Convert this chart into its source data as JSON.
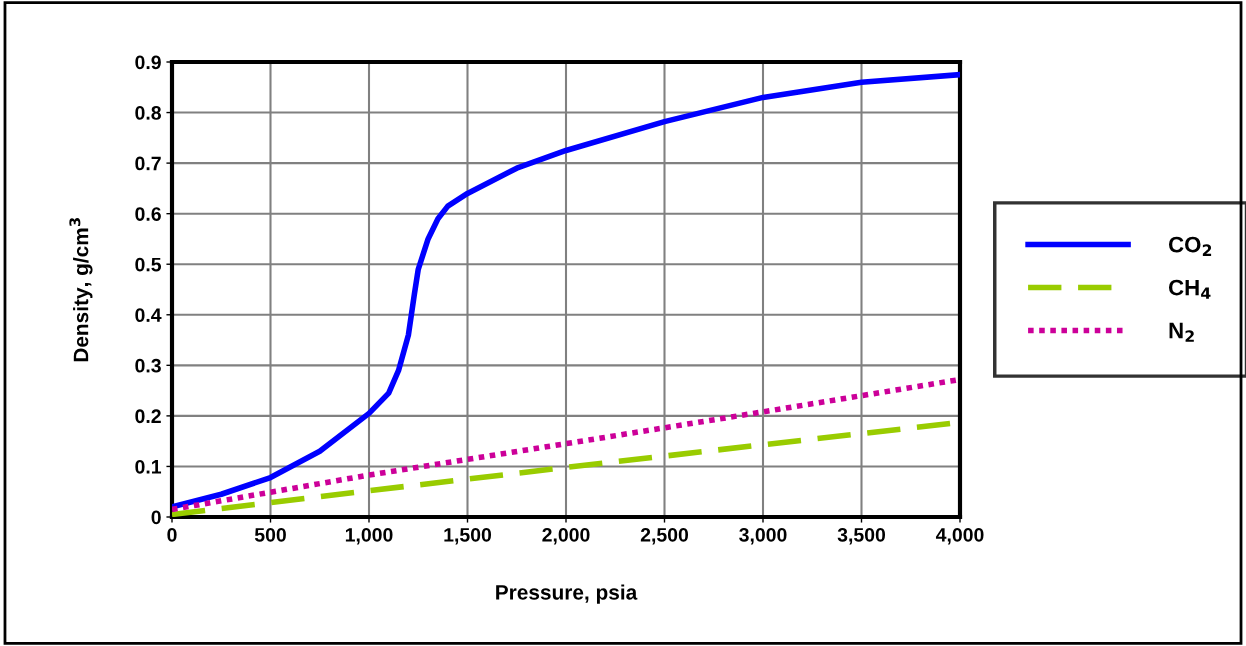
{
  "chart_data": {
    "type": "line",
    "xlabel": "Pressure, psia",
    "ylabel": "Density, g/cm$^{3}$",
    "xlim": [
      0,
      4000
    ],
    "ylim": [
      0,
      0.9
    ],
    "xticks": [
      0,
      {
        "value": 500,
        "label": "500"
      },
      {
        "value": 1000,
        "label": "1,000"
      },
      {
        "value": 1500,
        "label": "1,500"
      },
      {
        "value": 2000,
        "label": "2,000"
      },
      {
        "value": 2500,
        "label": "2,500"
      },
      {
        "value": 3000,
        "label": "3,000"
      },
      {
        "value": 3500,
        "label": "3,500"
      },
      {
        "value": 4000,
        "label": "4,000"
      }
    ],
    "yticks": [
      0,
      0.1,
      0.2,
      0.3,
      0.4,
      0.5,
      0.6,
      0.7,
      0.8,
      0.9
    ],
    "grid": true,
    "legend": "right",
    "marker": "none",
    "series": [
      {
        "name": "CO$_{2}$",
        "color": "#0000ff",
        "line_style": "solid",
        "x": [
          0,
          250,
          500,
          750,
          1000,
          1100,
          1150,
          1200,
          1230,
          1250,
          1300,
          1350,
          1400,
          1500,
          1750,
          2000,
          2500,
          3000,
          3500,
          4000
        ],
        "values": [
          0.02,
          0.045,
          0.078,
          0.13,
          0.205,
          0.245,
          0.29,
          0.36,
          0.44,
          0.49,
          0.55,
          0.59,
          0.615,
          0.64,
          0.69,
          0.725,
          0.782,
          0.83,
          0.86,
          0.875
        ]
      },
      {
        "name": "CH$_{4}$",
        "color": "#99cc00",
        "line_style": "dashed",
        "x": [
          0,
          1000,
          2000,
          3000,
          4000
        ],
        "values": [
          0.005,
          0.052,
          0.098,
          0.143,
          0.187
        ]
      },
      {
        "name": "N$_{2}$",
        "color": "#cc0099",
        "line_style": "dotted",
        "x": [
          0,
          1000,
          2000,
          3000,
          4000
        ],
        "values": [
          0.015,
          0.083,
          0.145,
          0.208,
          0.272
        ]
      }
    ]
  }
}
